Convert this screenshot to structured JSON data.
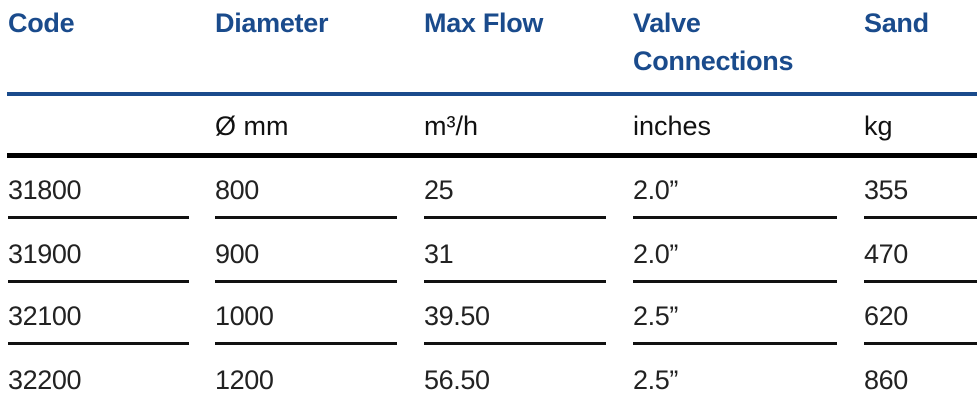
{
  "headers": [
    "Code",
    "Diameter",
    "Max Flow",
    "Valve\nConnections",
    "Sand"
  ],
  "units": [
    "",
    "Ø mm",
    "m³/h",
    "inches",
    "kg"
  ],
  "rows": [
    [
      "31800",
      "800",
      "25",
      "2.0”",
      "355"
    ],
    [
      "31900",
      "900",
      "31",
      "2.0”",
      "470"
    ],
    [
      "32100",
      "1000",
      "39.50",
      "2.5”",
      "620"
    ],
    [
      "32200",
      "1200",
      "56.50",
      "2.5”",
      "860"
    ]
  ],
  "colors": {
    "header": "#1a4b8c",
    "rule": "#1a4b8c",
    "text": "#222222"
  }
}
